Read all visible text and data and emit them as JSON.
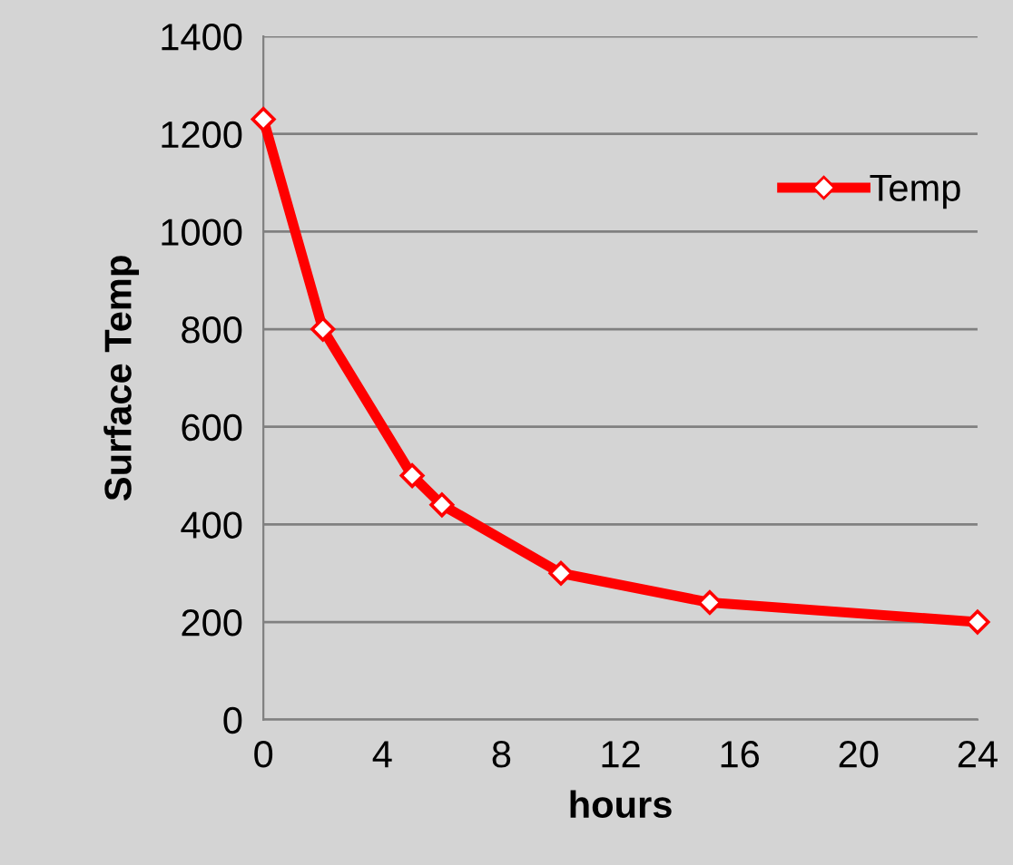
{
  "chart_data": {
    "type": "line",
    "xlabel": "hours",
    "ylabel": "Surface Temp",
    "x": [
      0,
      2,
      5,
      6,
      10,
      15,
      24
    ],
    "series": [
      {
        "name": "Temp",
        "color": "#ff0000",
        "values": [
          1230,
          800,
          500,
          440,
          300,
          240,
          200
        ]
      }
    ],
    "xlim": [
      0,
      24
    ],
    "xticks": [
      0,
      4,
      8,
      12,
      16,
      20,
      24
    ],
    "ylim": [
      0,
      1400
    ],
    "yticks": [
      0,
      200,
      400,
      600,
      800,
      1000,
      1200,
      1400
    ],
    "grid": "y",
    "legend": "right",
    "marker": "diamond",
    "line_style": "solid"
  }
}
